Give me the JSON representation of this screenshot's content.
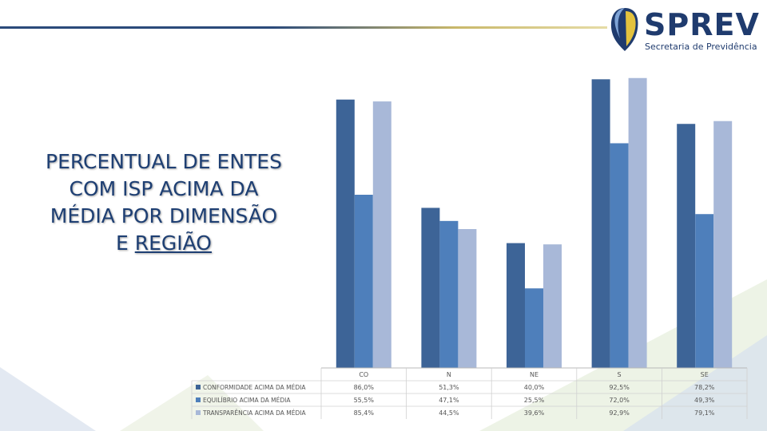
{
  "logo": {
    "name": "SPREV",
    "subtitle": "Secretaria de Previdência"
  },
  "title": {
    "line1": "PERCENTUAL DE ENTES",
    "line2": "COM ISP ACIMA DA",
    "line3": "MÉDIA POR DIMENSÃO",
    "line4_prefix": "E ",
    "line4_underlined": "REGIÃO"
  },
  "colors": {
    "series1": "#3d6497",
    "series2": "#4e7fbb",
    "series3": "#a8b8d8",
    "title": "#1e3f73",
    "line_dark": "#2b4a7a",
    "line_gold": "#c9b86a",
    "deco_green": "#d9e6c8",
    "deco_blue": "#dce4ef"
  },
  "chart_data": {
    "type": "bar",
    "categories": [
      "CO",
      "N",
      "NE",
      "S",
      "SE"
    ],
    "series": [
      {
        "name": "CONFORMIDADE ACIMA DA MÉDIA",
        "values": [
          86.0,
          51.3,
          40.0,
          92.5,
          78.2
        ],
        "labels": [
          "86,0%",
          "51,3%",
          "40,0%",
          "92,5%",
          "78,2%"
        ]
      },
      {
        "name": "EQUILÍBRIO ACIMA DA MÉDIA",
        "values": [
          55.5,
          47.1,
          25.5,
          72.0,
          49.3
        ],
        "labels": [
          "55,5%",
          "47,1%",
          "25,5%",
          "72,0%",
          "49,3%"
        ]
      },
      {
        "name": "TRANSPARÊNCIA ACIMA DA MÉDIA",
        "values": [
          85.4,
          44.5,
          39.6,
          92.9,
          79.1
        ],
        "labels": [
          "85,4%",
          "44,5%",
          "39,6%",
          "92,9%",
          "79,1%"
        ]
      }
    ],
    "ylim": [
      0,
      100
    ],
    "grid": false,
    "legend": "data-table-below",
    "title": "",
    "xlabel": "",
    "ylabel": ""
  }
}
